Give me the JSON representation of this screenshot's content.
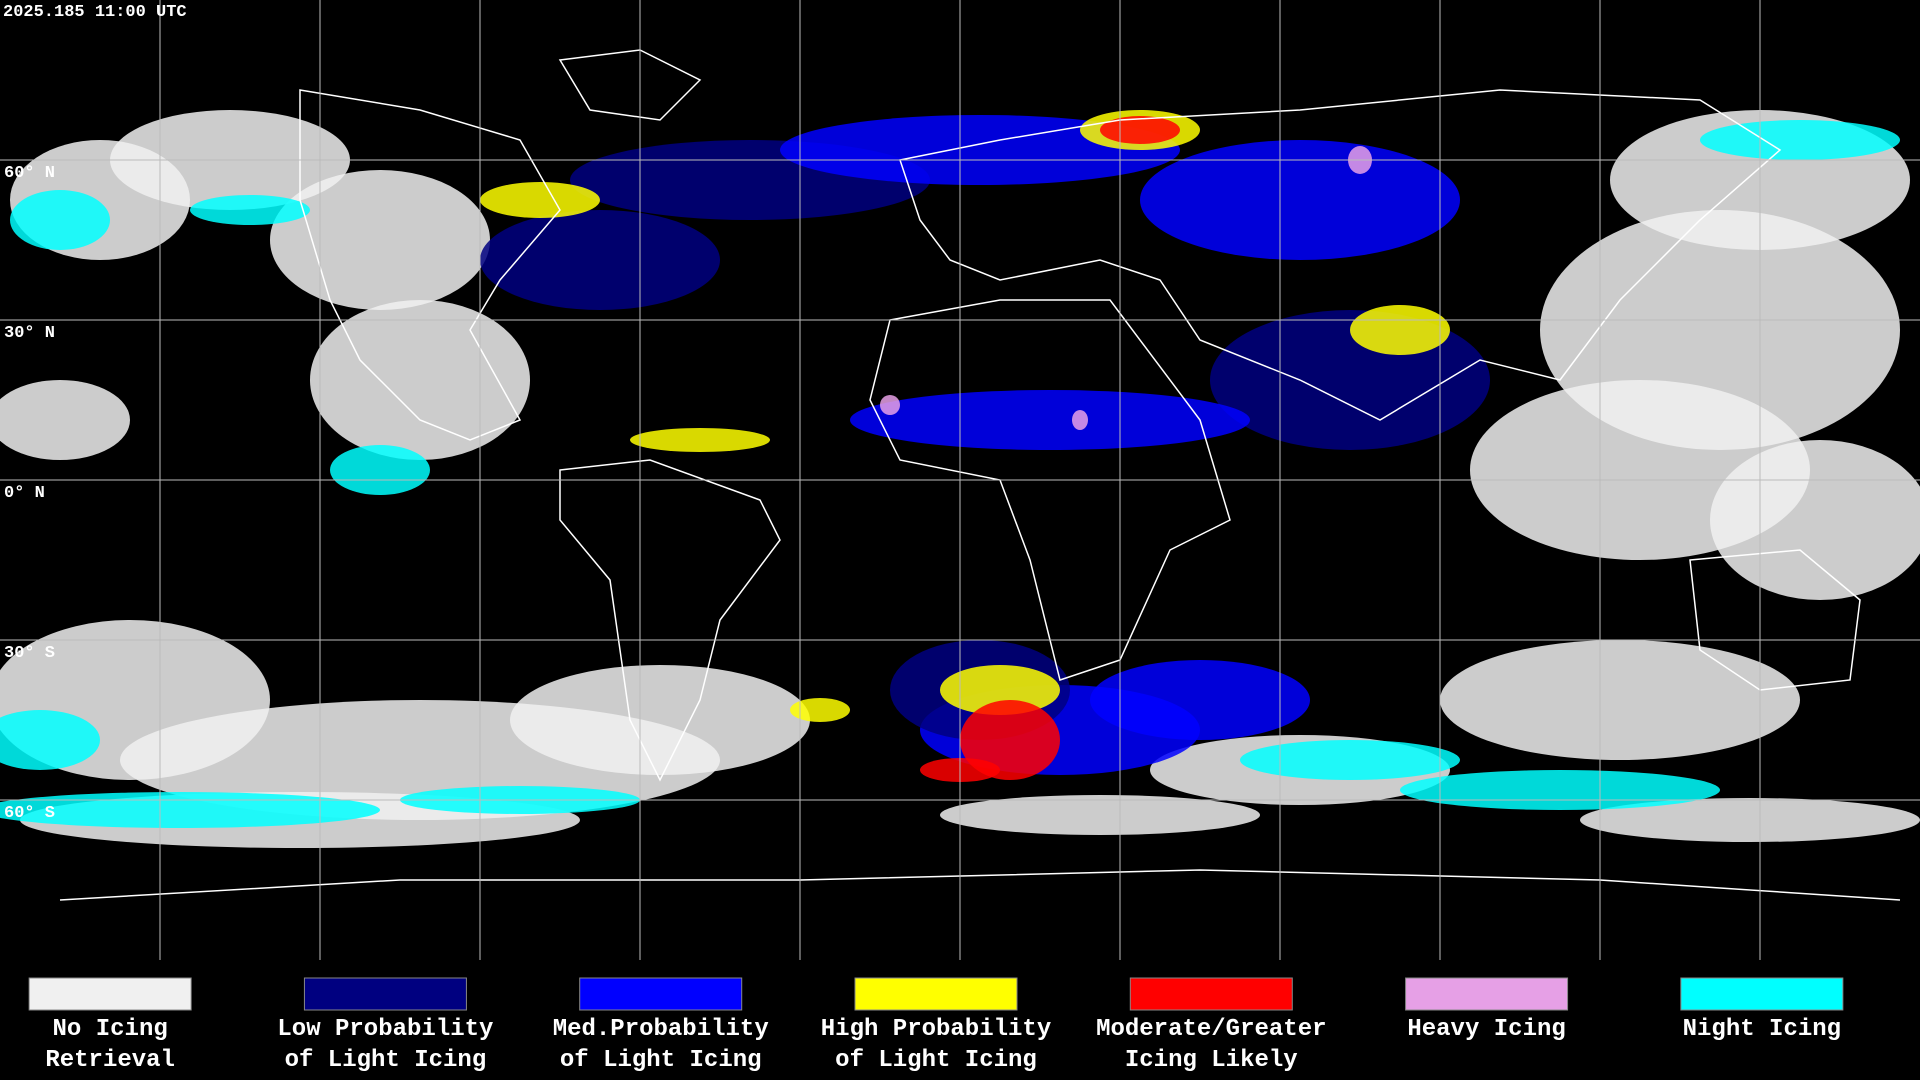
{
  "header": {
    "timestamp": "2025.185 11:00 UTC"
  },
  "map": {
    "latitude_labels": [
      "60° N",
      "30° N",
      "0° N",
      "30° S",
      "60° S"
    ]
  },
  "legend": [
    {
      "lines": [
        "No Icing",
        "Retrieval"
      ],
      "color": "#f0f0f0"
    },
    {
      "lines": [
        "Low Probability",
        "of Light Icing"
      ],
      "color": "#000080"
    },
    {
      "lines": [
        "Med.Probability",
        "of Light Icing"
      ],
      "color": "#0000ff"
    },
    {
      "lines": [
        "High Probability",
        "of Light Icing"
      ],
      "color": "#ffff00"
    },
    {
      "lines": [
        "Moderate/Greater",
        "Icing Likely"
      ],
      "color": "#ff0000"
    },
    {
      "lines": [
        "Heavy Icing"
      ],
      "color": "#e6a0e6"
    },
    {
      "lines": [
        "Night Icing"
      ],
      "color": "#00ffff"
    }
  ]
}
